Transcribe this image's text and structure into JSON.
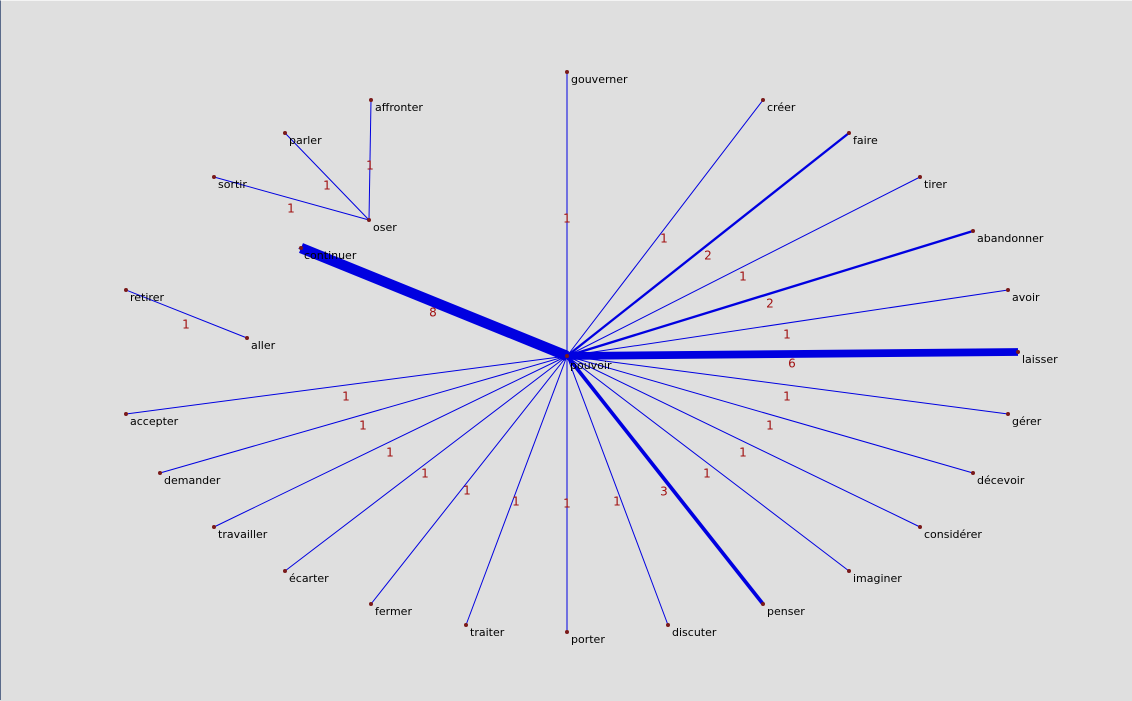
{
  "colors": {
    "background": "#dfdfdf",
    "edge": "#0000e0",
    "node_dot": "#7a1a1a",
    "node_text": "#000000",
    "weight_text": "#a01010"
  },
  "nodes": [
    {
      "id": "pouvoir",
      "label": "pouvoir"
    },
    {
      "id": "gouverner",
      "label": "gouverner"
    },
    {
      "id": "creer",
      "label": "créer"
    },
    {
      "id": "faire",
      "label": "faire"
    },
    {
      "id": "tirer",
      "label": "tirer"
    },
    {
      "id": "abandonner",
      "label": "abandonner"
    },
    {
      "id": "avoir",
      "label": "avoir"
    },
    {
      "id": "laisser",
      "label": "laisser"
    },
    {
      "id": "gerer",
      "label": "gérer"
    },
    {
      "id": "decevoir",
      "label": "décevoir"
    },
    {
      "id": "considerer",
      "label": "considérer"
    },
    {
      "id": "imaginer",
      "label": "imaginer"
    },
    {
      "id": "penser",
      "label": "penser"
    },
    {
      "id": "discuter",
      "label": "discuter"
    },
    {
      "id": "porter",
      "label": "porter"
    },
    {
      "id": "traiter",
      "label": "traiter"
    },
    {
      "id": "fermer",
      "label": "fermer"
    },
    {
      "id": "ecarter",
      "label": "écarter"
    },
    {
      "id": "travailler",
      "label": "travailler"
    },
    {
      "id": "demander",
      "label": "demander"
    },
    {
      "id": "accepter",
      "label": "accepter"
    },
    {
      "id": "continuer",
      "label": "continuer"
    },
    {
      "id": "retirer",
      "label": "retirer"
    },
    {
      "id": "aller",
      "label": "aller"
    },
    {
      "id": "sortir",
      "label": "sortir"
    },
    {
      "id": "parler",
      "label": "parler"
    },
    {
      "id": "affronter",
      "label": "affronter"
    },
    {
      "id": "oser",
      "label": "oser"
    }
  ],
  "edges": [
    {
      "from": "pouvoir",
      "to": "gouverner",
      "weight": "1"
    },
    {
      "from": "pouvoir",
      "to": "creer",
      "weight": "1"
    },
    {
      "from": "pouvoir",
      "to": "faire",
      "weight": "2"
    },
    {
      "from": "pouvoir",
      "to": "tirer",
      "weight": "1"
    },
    {
      "from": "pouvoir",
      "to": "abandonner",
      "weight": "2"
    },
    {
      "from": "pouvoir",
      "to": "avoir",
      "weight": "1"
    },
    {
      "from": "pouvoir",
      "to": "laisser",
      "weight": "6"
    },
    {
      "from": "pouvoir",
      "to": "gerer",
      "weight": "1"
    },
    {
      "from": "pouvoir",
      "to": "decevoir",
      "weight": "1"
    },
    {
      "from": "pouvoir",
      "to": "considerer",
      "weight": "1"
    },
    {
      "from": "pouvoir",
      "to": "imaginer",
      "weight": "1"
    },
    {
      "from": "pouvoir",
      "to": "penser",
      "weight": "3"
    },
    {
      "from": "pouvoir",
      "to": "discuter",
      "weight": "1"
    },
    {
      "from": "pouvoir",
      "to": "porter",
      "weight": "1"
    },
    {
      "from": "pouvoir",
      "to": "traiter",
      "weight": "1"
    },
    {
      "from": "pouvoir",
      "to": "fermer",
      "weight": "1"
    },
    {
      "from": "pouvoir",
      "to": "ecarter",
      "weight": "1"
    },
    {
      "from": "pouvoir",
      "to": "travailler",
      "weight": "1"
    },
    {
      "from": "pouvoir",
      "to": "demander",
      "weight": "1"
    },
    {
      "from": "pouvoir",
      "to": "accepter",
      "weight": "1"
    },
    {
      "from": "pouvoir",
      "to": "continuer",
      "weight": "8"
    },
    {
      "from": "retirer",
      "to": "aller",
      "weight": "1"
    },
    {
      "from": "sortir",
      "to": "oser",
      "weight": "1"
    },
    {
      "from": "parler",
      "to": "oser",
      "weight": "1"
    },
    {
      "from": "affronter",
      "to": "oser",
      "weight": "1"
    }
  ]
}
